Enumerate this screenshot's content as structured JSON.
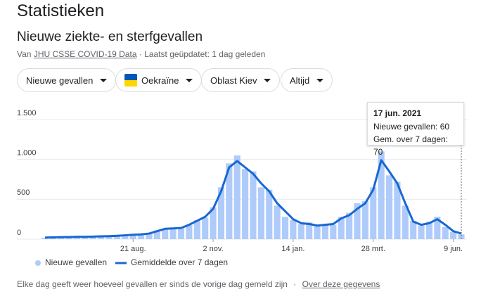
{
  "header": {
    "title": "Statistieken",
    "subtitle": "Nieuwe ziekte- en sterfgevallen",
    "source_prefix": "Van",
    "source_link": "JHU CSSE COVID-19 Data",
    "updated": "· Laatst geüpdatet: 1 dag geleden"
  },
  "filters": [
    "Nieuwe gevallen",
    "Oekraïne",
    "Oblast Kiev",
    "Altijd"
  ],
  "tooltip": {
    "date": "17 jun. 2021",
    "line1": "Nieuwe gevallen: 60",
    "line2": "Gem. over 7 dagen: 70"
  },
  "footer": {
    "text": "Elke dag geeft weer hoeveel gevallen er sinds de vorige dag gemeld zijn",
    "sep": "·",
    "link": "Over deze gegevens"
  },
  "chart_data": {
    "type": "bar",
    "categories": [
      null,
      null,
      null,
      null,
      null,
      null,
      null,
      null,
      null,
      null,
      null,
      "21 aug.",
      null,
      null,
      null,
      null,
      null,
      null,
      null,
      null,
      null,
      "2 nov.",
      null,
      null,
      null,
      null,
      null,
      null,
      null,
      null,
      null,
      "14 jan.",
      null,
      null,
      null,
      null,
      null,
      null,
      null,
      null,
      null,
      "28 mrt.",
      null,
      null,
      null,
      null,
      null,
      null,
      null,
      null,
      null,
      "9 jun.",
      null
    ],
    "series": [
      {
        "name": "Nieuwe gevallen",
        "type": "bar",
        "color": "#aecbfa",
        "values": [
          18,
          25,
          22,
          30,
          28,
          33,
          30,
          38,
          35,
          45,
          50,
          52,
          65,
          68,
          110,
          125,
          140,
          138,
          175,
          240,
          270,
          400,
          650,
          950,
          1050,
          880,
          850,
          650,
          620,
          420,
          280,
          240,
          190,
          210,
          160,
          190,
          180,
          280,
          330,
          450,
          480,
          650,
          1100,
          800,
          720,
          420,
          230,
          170,
          220,
          280,
          150,
          90,
          60
        ]
      },
      {
        "name": "Gemiddelde over 7 dagen",
        "type": "line",
        "color": "#1967d2",
        "values": [
          20,
          22,
          25,
          27,
          30,
          30,
          32,
          35,
          38,
          42,
          48,
          55,
          60,
          70,
          100,
          130,
          135,
          140,
          180,
          230,
          280,
          380,
          600,
          900,
          980,
          900,
          820,
          700,
          600,
          450,
          350,
          250,
          200,
          190,
          170,
          180,
          190,
          260,
          300,
          380,
          450,
          620,
          990,
          850,
          700,
          450,
          220,
          180,
          200,
          250,
          180,
          100,
          70
        ]
      }
    ],
    "ylim": [
      0,
      1500
    ],
    "yticks": [
      0,
      500,
      {
        "value": 1000,
        "label": "1.000"
      },
      {
        "value": 1500,
        "label": "1.500"
      }
    ],
    "grid": true
  }
}
